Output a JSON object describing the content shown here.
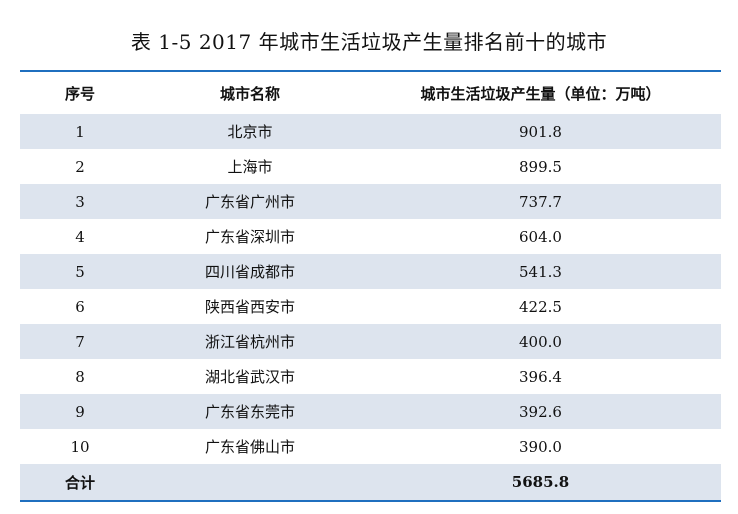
{
  "caption": "表 1-5 2017 年城市生活垃圾产生量排名前十的城市",
  "table": {
    "headers": [
      "序号",
      "城市名称",
      "城市生活垃圾产生量（单位：万吨）"
    ],
    "rows": [
      [
        "1",
        "北京市",
        "901.8"
      ],
      [
        "2",
        "上海市",
        "899.5"
      ],
      [
        "3",
        "广东省广州市",
        "737.7"
      ],
      [
        "4",
        "广东省深圳市",
        "604.0"
      ],
      [
        "5",
        "四川省成都市",
        "541.3"
      ],
      [
        "6",
        "陕西省西安市",
        "422.5"
      ],
      [
        "7",
        "浙江省杭州市",
        "400.0"
      ],
      [
        "8",
        "湖北省武汉市",
        "396.4"
      ],
      [
        "9",
        "广东省东莞市",
        "392.6"
      ],
      [
        "10",
        "广东省佛山市",
        "390.0"
      ]
    ],
    "total": {
      "label": "合计",
      "value": "5685.8"
    }
  },
  "colors": {
    "rule": "#1f6fbf",
    "band": "#dde4ee"
  }
}
